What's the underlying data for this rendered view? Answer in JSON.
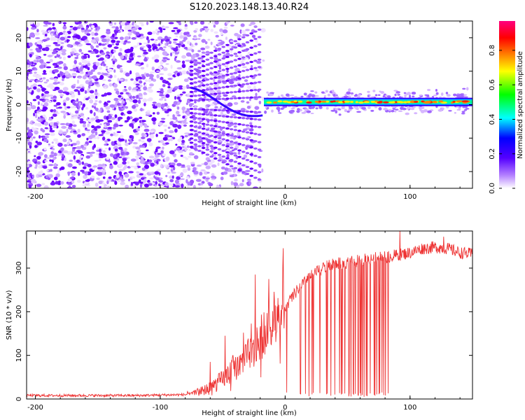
{
  "title": "S120.2023.148.13.40.R24",
  "chart_data": [
    {
      "id": "spectrogram",
      "type": "heatmap",
      "xlabel": "Height of straight line (km)",
      "ylabel": "Frequency (Hz)",
      "xlim": [
        -207,
        150
      ],
      "ylim": [
        -25,
        25
      ],
      "xticks": [
        -200,
        -100,
        0,
        100
      ],
      "yticks": [
        -20,
        -10,
        0,
        10,
        20
      ],
      "colorbar": {
        "label": "Normalized spectral amplitude",
        "range": [
          0.0,
          0.97
        ],
        "ticks": [
          0.0,
          0.2,
          0.4,
          0.6,
          0.8
        ],
        "tick_labels": [
          "0.0",
          "0.2",
          "0.4",
          "0.6",
          "0.8"
        ],
        "colormap": [
          "#ffffff",
          "#7a00ff",
          "#0000ff",
          "#00ffff",
          "#00ff00",
          "#ffff00",
          "#ff7f00",
          "#ff0000",
          "#ff0080"
        ]
      },
      "features": [
        {
          "name": "broadband noise",
          "x_range": [
            -207,
            -17
          ],
          "freq_range": [
            -25,
            25
          ],
          "level": 0.25
        },
        {
          "name": "carrier line",
          "x_range": [
            -17,
            150
          ],
          "frequency_hz": 0.8,
          "level": 0.6
        }
      ]
    },
    {
      "id": "snr",
      "type": "line",
      "xlabel": "Height of straight line (km)",
      "ylabel": "SNR (10 * v/v)",
      "xlim": [
        -207,
        150
      ],
      "ylim": [
        0,
        385
      ],
      "xticks": [
        -200,
        -100,
        0,
        100
      ],
      "yticks": [
        0,
        100,
        200,
        300
      ],
      "color": "#ee3333",
      "series": [
        {
          "name": "SNR",
          "x": [
            -207,
            -180,
            -150,
            -120,
            -100,
            -80,
            -70,
            -60,
            -50,
            -40,
            -30,
            -20,
            -15,
            -10,
            -5,
            0,
            5,
            10,
            20,
            30,
            40,
            50,
            60,
            70,
            80,
            90,
            100,
            110,
            120,
            130,
            140,
            150
          ],
          "y": [
            8,
            8,
            8,
            8,
            9,
            10,
            15,
            25,
            45,
            70,
            100,
            130,
            150,
            175,
            190,
            210,
            230,
            250,
            280,
            300,
            310,
            312,
            318,
            322,
            325,
            330,
            335,
            345,
            348,
            345,
            335,
            332
          ]
        }
      ],
      "dropouts_x_range": [
        1,
        83
      ],
      "spikes": [
        {
          "x": -60,
          "y": 85
        },
        {
          "x": -48,
          "y": 145
        },
        {
          "x": -24,
          "y": 285
        },
        {
          "x": -13,
          "y": 275
        },
        {
          "x": 92,
          "y": 385
        },
        {
          "x": 127,
          "y": 372
        }
      ]
    }
  ]
}
